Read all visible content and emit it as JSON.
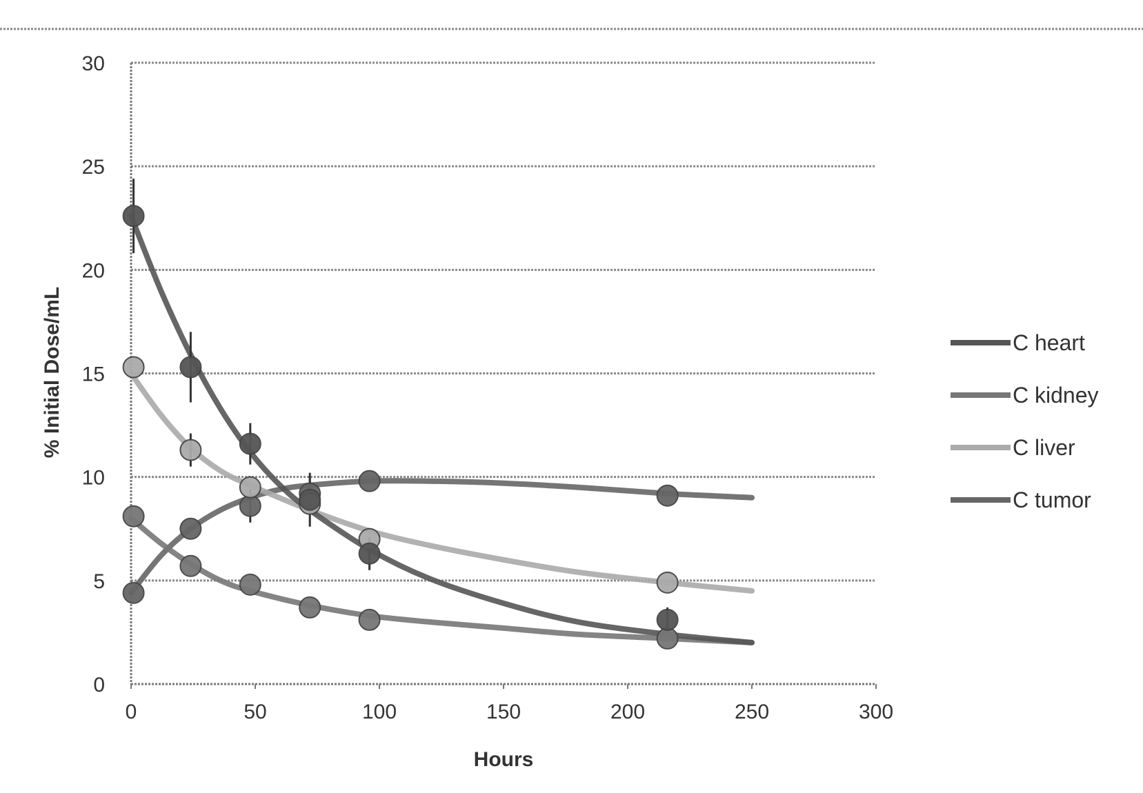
{
  "chart_data": {
    "type": "line",
    "title": "",
    "xlabel": "Hours",
    "ylabel": "% Initial Dose/mL",
    "xlim": [
      0,
      300
    ],
    "ylim": [
      0,
      30
    ],
    "xticks": [
      "0",
      "50",
      "100",
      "150",
      "200",
      "250",
      "300"
    ],
    "yticks": [
      "0",
      "5",
      "10",
      "15",
      "20",
      "25",
      "30"
    ],
    "grid": "horizontal",
    "legend": "right",
    "series": [
      {
        "name": "C heart",
        "color": "#555555",
        "points": [
          {
            "x": 1,
            "y": 22.6,
            "err": 1.8
          },
          {
            "x": 24,
            "y": 15.3,
            "err": 1.7
          },
          {
            "x": 48,
            "y": 11.6,
            "err": 1.0
          },
          {
            "x": 72,
            "y": 8.9,
            "err": 1.3
          },
          {
            "x": 96,
            "y": 6.3,
            "err": 0.8
          },
          {
            "x": 216,
            "y": 3.1,
            "err": 0.6
          }
        ],
        "fit": [
          [
            0,
            22.6
          ],
          [
            12,
            19.0
          ],
          [
            24,
            15.9
          ],
          [
            36,
            13.3
          ],
          [
            48,
            11.2
          ],
          [
            60,
            9.6
          ],
          [
            72,
            8.4
          ],
          [
            96,
            6.5
          ],
          [
            120,
            5.1
          ],
          [
            150,
            3.9
          ],
          [
            180,
            3.0
          ],
          [
            216,
            2.4
          ],
          [
            250,
            2.0
          ]
        ]
      },
      {
        "name": "C kidney",
        "color": "#777777",
        "points": [
          {
            "x": 1,
            "y": 8.1,
            "err": 0
          },
          {
            "x": 24,
            "y": 5.7,
            "err": 0
          },
          {
            "x": 48,
            "y": 4.8,
            "err": 0
          },
          {
            "x": 72,
            "y": 3.7,
            "err": 0
          },
          {
            "x": 96,
            "y": 3.1,
            "err": 0
          },
          {
            "x": 216,
            "y": 2.2,
            "err": 0
          }
        ],
        "fit": [
          [
            0,
            8.0
          ],
          [
            12,
            6.8
          ],
          [
            24,
            5.8
          ],
          [
            36,
            5.0
          ],
          [
            48,
            4.5
          ],
          [
            72,
            3.8
          ],
          [
            96,
            3.3
          ],
          [
            120,
            3.0
          ],
          [
            150,
            2.7
          ],
          [
            180,
            2.4
          ],
          [
            216,
            2.2
          ],
          [
            250,
            2.0
          ]
        ]
      },
      {
        "name": "C liver",
        "color": "#aaaaaa",
        "points": [
          {
            "x": 1,
            "y": 15.3,
            "err": 0
          },
          {
            "x": 24,
            "y": 11.3,
            "err": 0.8
          },
          {
            "x": 48,
            "y": 9.5,
            "err": 0
          },
          {
            "x": 72,
            "y": 8.7,
            "err": 0
          },
          {
            "x": 96,
            "y": 7.0,
            "err": 0
          },
          {
            "x": 216,
            "y": 4.9,
            "err": 0
          }
        ],
        "fit": [
          [
            0,
            15.0
          ],
          [
            12,
            13.0
          ],
          [
            24,
            11.4
          ],
          [
            36,
            10.3
          ],
          [
            48,
            9.6
          ],
          [
            72,
            8.4
          ],
          [
            96,
            7.4
          ],
          [
            120,
            6.7
          ],
          [
            150,
            6.0
          ],
          [
            180,
            5.4
          ],
          [
            216,
            4.9
          ],
          [
            250,
            4.5
          ]
        ]
      },
      {
        "name": "C tumor",
        "color": "#666666",
        "points": [
          {
            "x": 1,
            "y": 4.4,
            "err": 0
          },
          {
            "x": 24,
            "y": 7.5,
            "err": 0
          },
          {
            "x": 48,
            "y": 8.6,
            "err": 0.8
          },
          {
            "x": 72,
            "y": 9.2,
            "err": 0.8
          },
          {
            "x": 96,
            "y": 9.8,
            "err": 0
          },
          {
            "x": 216,
            "y": 9.1,
            "err": 0
          }
        ],
        "fit": [
          [
            0,
            4.4
          ],
          [
            12,
            6.2
          ],
          [
            24,
            7.5
          ],
          [
            36,
            8.4
          ],
          [
            48,
            9.0
          ],
          [
            60,
            9.4
          ],
          [
            72,
            9.6
          ],
          [
            96,
            9.8
          ],
          [
            120,
            9.8
          ],
          [
            150,
            9.7
          ],
          [
            180,
            9.5
          ],
          [
            216,
            9.2
          ],
          [
            250,
            9.0
          ]
        ]
      }
    ]
  }
}
